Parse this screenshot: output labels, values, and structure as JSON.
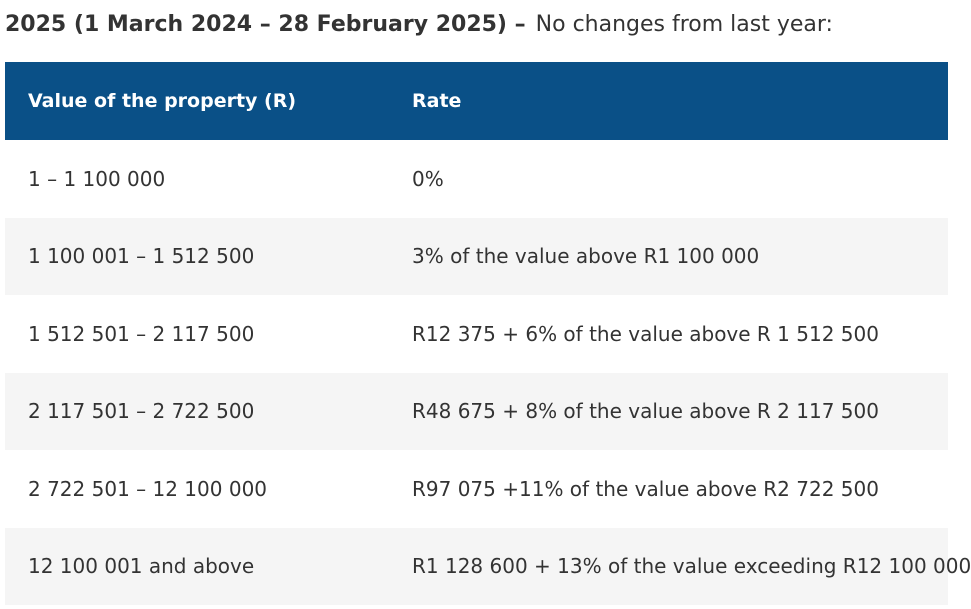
{
  "heading": {
    "bold_text": "2025 (1 March 2024 – 28 February 2025) –",
    "normal_text": "No changes from last year:"
  },
  "table": {
    "headers": [
      "Value of the property (R)",
      "Rate"
    ],
    "rows": [
      {
        "value": "1 – 1 100 000",
        "rate": "0%"
      },
      {
        "value": " 1 100 001 – 1 512 500",
        "rate": "3% of the value above R1 100 000"
      },
      {
        "value": " 1 512 501 – 2 117 500",
        "rate": "R12 375 + 6% of the value above R 1 512 500"
      },
      {
        "value": " 2 117 501 – 2 722 500",
        "rate": "R48 675 + 8% of the value above R 2 117 500"
      },
      {
        "value": "2 722 501 – 12 100 000",
        "rate": "R97 075 +11% of the value above R2 722 500"
      },
      {
        "value": "12 100 001 and above",
        "rate": "R1 128 600 + 13% of the value exceeding R12 100 000"
      }
    ]
  },
  "colors": {
    "header_background": "#0a5087",
    "header_text": "#ffffff",
    "row_alt_background": "#f5f5f5",
    "body_text": "#333333"
  }
}
